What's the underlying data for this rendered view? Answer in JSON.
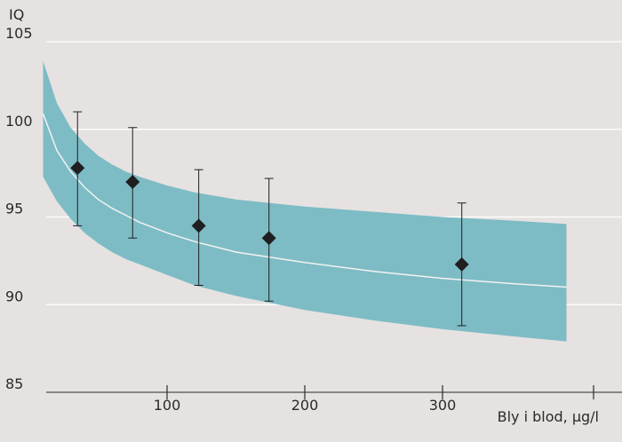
{
  "chart_data": {
    "type": "scatter",
    "ylabel": "IQ",
    "xlabel": "Bly i blod, µg/l",
    "xlim": [
      10,
      400
    ],
    "ylim": [
      85,
      105
    ],
    "x_ticks": [
      100,
      200,
      300
    ],
    "y_ticks": [
      85,
      90,
      95,
      100,
      105
    ],
    "grid": "horizontal",
    "points": [
      {
        "x": 35,
        "y": 97.8,
        "ci_low": 94.5,
        "ci_high": 101.0
      },
      {
        "x": 75,
        "y": 97.0,
        "ci_low": 93.8,
        "ci_high": 100.1
      },
      {
        "x": 123,
        "y": 94.5,
        "ci_low": 91.1,
        "ci_high": 97.7
      },
      {
        "x": 174,
        "y": 93.8,
        "ci_low": 90.2,
        "ci_high": 97.2
      },
      {
        "x": 314,
        "y": 92.3,
        "ci_low": 88.8,
        "ci_high": 95.8
      }
    ],
    "fit_curve": {
      "x": [
        10,
        20,
        30,
        40,
        50,
        60,
        70,
        80,
        100,
        120,
        150,
        200,
        250,
        300,
        350,
        390
      ],
      "y": [
        100.9,
        98.8,
        97.6,
        96.7,
        96.0,
        95.5,
        95.1,
        94.7,
        94.1,
        93.6,
        93.0,
        92.4,
        91.9,
        91.5,
        91.2,
        91.0
      ],
      "upper": [
        103.9,
        101.5,
        100.1,
        99.2,
        98.5,
        98.0,
        97.6,
        97.3,
        96.8,
        96.4,
        96.0,
        95.6,
        95.3,
        95.0,
        94.8,
        94.6
      ],
      "lower": [
        97.3,
        95.9,
        94.9,
        94.1,
        93.5,
        93.0,
        92.6,
        92.3,
        91.7,
        91.1,
        90.5,
        89.7,
        89.1,
        88.6,
        88.2,
        87.9
      ]
    },
    "colors": {
      "band": "#7dbcc5",
      "fit_line": "#f2f2f2",
      "marker": "#1f1f1f",
      "grid": "#ffffff",
      "axis": "#2a2a2a"
    }
  }
}
